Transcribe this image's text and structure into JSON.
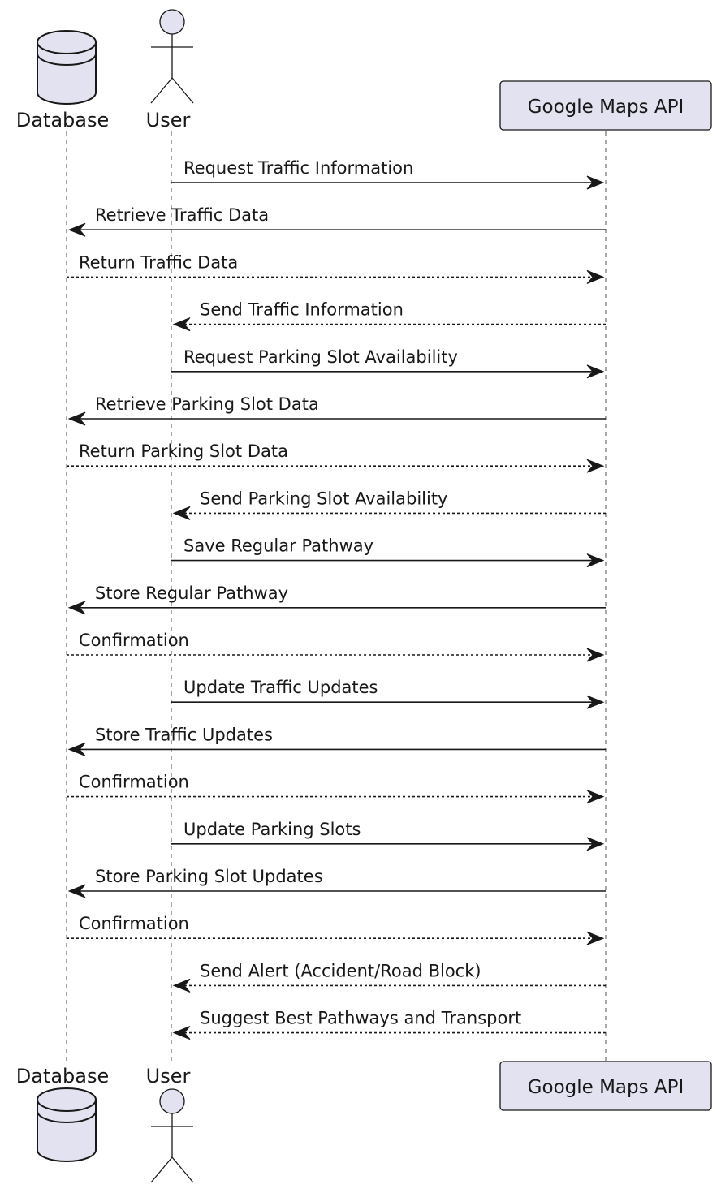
{
  "participants": {
    "database": {
      "label": "Database",
      "icon": "database-icon"
    },
    "user": {
      "label": "User",
      "icon": "actor-icon"
    },
    "maps": {
      "label": "Google Maps API"
    }
  },
  "colors": {
    "participant_fill": "#e2e2f0",
    "line": "#181818"
  },
  "messages": [
    {
      "from": "user",
      "to": "maps",
      "label": "Request Traffic Information",
      "style": "solid"
    },
    {
      "from": "maps",
      "to": "database",
      "label": "Retrieve Traffic Data",
      "style": "solid"
    },
    {
      "from": "database",
      "to": "maps",
      "label": "Return Traffic Data",
      "style": "dashed"
    },
    {
      "from": "maps",
      "to": "user",
      "label": "Send Traffic Information",
      "style": "dashed"
    },
    {
      "from": "user",
      "to": "maps",
      "label": "Request Parking Slot Availability",
      "style": "solid"
    },
    {
      "from": "maps",
      "to": "database",
      "label": "Retrieve Parking Slot Data",
      "style": "solid"
    },
    {
      "from": "database",
      "to": "maps",
      "label": "Return Parking Slot Data",
      "style": "dashed"
    },
    {
      "from": "maps",
      "to": "user",
      "label": "Send Parking Slot Availability",
      "style": "dashed"
    },
    {
      "from": "user",
      "to": "maps",
      "label": "Save Regular Pathway",
      "style": "solid"
    },
    {
      "from": "maps",
      "to": "database",
      "label": "Store Regular Pathway",
      "style": "solid"
    },
    {
      "from": "database",
      "to": "maps",
      "label": "Confirmation",
      "style": "dashed"
    },
    {
      "from": "user",
      "to": "maps",
      "label": "Update Traffic Updates",
      "style": "solid"
    },
    {
      "from": "maps",
      "to": "database",
      "label": "Store Traffic Updates",
      "style": "solid"
    },
    {
      "from": "database",
      "to": "maps",
      "label": "Confirmation",
      "style": "dashed"
    },
    {
      "from": "user",
      "to": "maps",
      "label": "Update Parking Slots",
      "style": "solid"
    },
    {
      "from": "maps",
      "to": "database",
      "label": "Store Parking Slot Updates",
      "style": "solid"
    },
    {
      "from": "database",
      "to": "maps",
      "label": "Confirmation",
      "style": "dashed"
    },
    {
      "from": "maps",
      "to": "user",
      "label": "Send Alert (Accident/Road Block)",
      "style": "dashed"
    },
    {
      "from": "maps",
      "to": "user",
      "label": "Suggest Best Pathways and Transport",
      "style": "dashed"
    }
  ]
}
